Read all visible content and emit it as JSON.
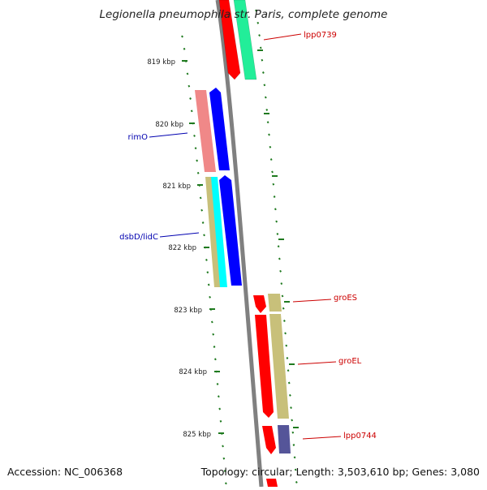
{
  "title": "Legionella pneumophila str. Paris, complete genome",
  "footer": {
    "accession": "Accession: NC_006368",
    "summary": "Topology: circular; Length: 3,503,610 bp; Genes: 3,080"
  },
  "ruler": {
    "unit": "kbp",
    "labels": [
      "819 kbp",
      "820 kbp",
      "821 kbp",
      "822 kbp",
      "823 kbp",
      "824 kbp",
      "825 kbp"
    ]
  },
  "colors": {
    "backbone": "#808080",
    "tick": "#1f7a1f",
    "label_left": "#0000b0",
    "label_right": "#cc0000",
    "red": "#ff0000",
    "mint": "#22ee99",
    "pink": "#f08888",
    "blue": "#0000ff",
    "khaki": "#c8c07a",
    "cyan": "#00ffff",
    "slate": "#555599"
  },
  "genes": [
    {
      "label": "lpp0739",
      "side": "right"
    },
    {
      "label": "rimO",
      "side": "left"
    },
    {
      "label": "dsbD/lidC",
      "side": "left"
    },
    {
      "label": "groES",
      "side": "right"
    },
    {
      "label": "groEL",
      "side": "right"
    },
    {
      "label": "lpp0744",
      "side": "right"
    }
  ]
}
